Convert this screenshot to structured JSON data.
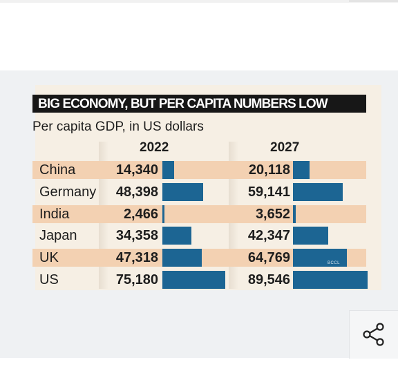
{
  "chart_data": {
    "type": "bar",
    "title": "BIG ECONOMY, BUT PER CAPITA NUMBERS LOW",
    "subtitle": "Per capita GDP, in US dollars",
    "categories": [
      "China",
      "Germany",
      "India",
      "Japan",
      "UK",
      "US"
    ],
    "series": [
      {
        "name": "2022",
        "values": [
          14340,
          48398,
          2466,
          34358,
          47318,
          75180
        ],
        "labels": [
          "14,340",
          "48,398",
          "2,466",
          "34,358",
          "47,318",
          "75,180"
        ]
      },
      {
        "name": "2027",
        "values": [
          20118,
          59141,
          3652,
          42347,
          64769,
          89546
        ],
        "labels": [
          "20,118",
          "59,141",
          "3,652",
          "42,347",
          "64,769",
          "89,546"
        ]
      }
    ],
    "bar_color": "#1c6593",
    "row_color": "#f3d1b2",
    "watermark": "BCCL"
  },
  "share": {
    "icon": "share-icon"
  }
}
